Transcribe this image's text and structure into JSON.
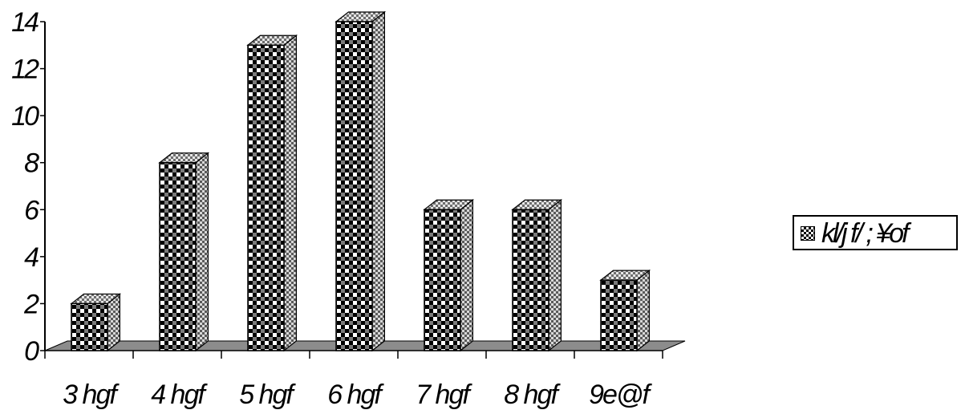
{
  "chart_data": {
    "type": "bar",
    "categories": [
      "3 hgf",
      "4 hgf",
      "5 hgf",
      "6 hgf",
      "7 hgf",
      "8 hgf",
      "9e@f"
    ],
    "series": [
      {
        "name": "kl/j f/ ; ¥of",
        "values": [
          2,
          8,
          13,
          14,
          6,
          6,
          3
        ]
      }
    ],
    "yticks": [
      "0",
      "2",
      "4",
      "6",
      "8",
      "10",
      "12",
      "14"
    ],
    "ylim": [
      0,
      14
    ],
    "title": "",
    "xlabel": "",
    "ylabel": "",
    "grid": false,
    "legend_position": "right",
    "bar_style": "3d-checkered",
    "colors": {
      "bar_dark": "#000000",
      "bar_light": "#ffffff",
      "bar_mid": "#9a9a9a",
      "floor": "#8c8c8c"
    }
  }
}
